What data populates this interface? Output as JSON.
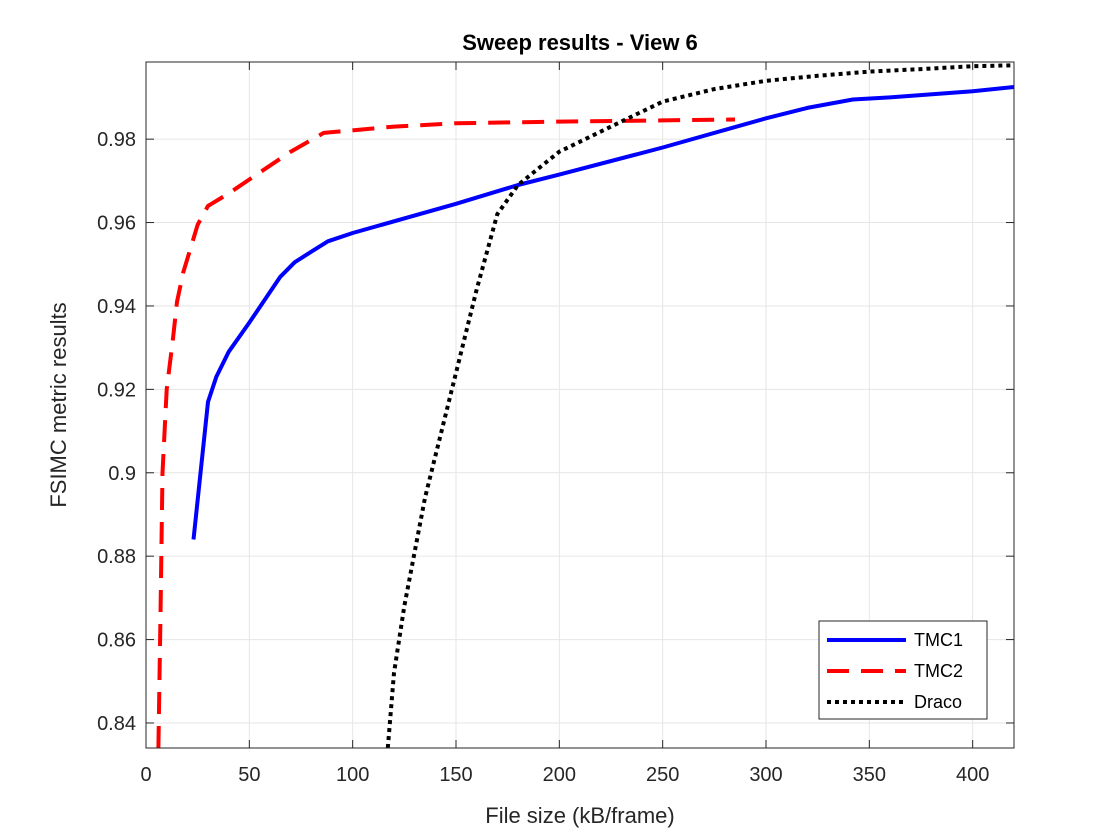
{
  "chart_data": {
    "type": "line",
    "title": "Sweep results - View 6",
    "xlabel": "File size (kB/frame)",
    "ylabel": "FSIMC metric results",
    "xlim": [
      0,
      420
    ],
    "ylim": [
      0.834,
      0.9985
    ],
    "xticks": [
      0,
      50,
      100,
      150,
      200,
      250,
      300,
      350,
      400
    ],
    "yticks": [
      0.84,
      0.86,
      0.88,
      0.9,
      0.92,
      0.94,
      0.96,
      0.98
    ],
    "ytick_labels": [
      "0.84",
      "0.86",
      "0.88",
      "0.9",
      "0.92",
      "0.94",
      "0.96",
      "0.98"
    ],
    "grid": true,
    "legend_position": "bottom-right",
    "series": [
      {
        "name": "TMC1",
        "color": "#0000ff",
        "style": "solid",
        "points": [
          [
            23,
            0.884
          ],
          [
            30,
            0.917
          ],
          [
            34,
            0.923
          ],
          [
            40,
            0.929
          ],
          [
            50,
            0.936
          ],
          [
            65,
            0.947
          ],
          [
            72,
            0.9505
          ],
          [
            80,
            0.953
          ],
          [
            88,
            0.9555
          ],
          [
            100,
            0.9575
          ],
          [
            150,
            0.9645
          ],
          [
            180,
            0.969
          ],
          [
            200,
            0.9715
          ],
          [
            250,
            0.978
          ],
          [
            300,
            0.985
          ],
          [
            320,
            0.9875
          ],
          [
            342,
            0.9895
          ],
          [
            360,
            0.99
          ],
          [
            400,
            0.9915
          ],
          [
            420,
            0.9925
          ]
        ]
      },
      {
        "name": "TMC2",
        "color": "#ff0000",
        "style": "dashed",
        "points": [
          [
            6,
            0.834
          ],
          [
            7,
            0.866
          ],
          [
            8,
            0.9
          ],
          [
            10,
            0.92
          ],
          [
            13,
            0.932
          ],
          [
            15,
            0.941
          ],
          [
            18,
            0.948
          ],
          [
            25,
            0.9595
          ],
          [
            30,
            0.964
          ],
          [
            40,
            0.967
          ],
          [
            55,
            0.972
          ],
          [
            70,
            0.977
          ],
          [
            86,
            0.9815
          ],
          [
            120,
            0.983
          ],
          [
            150,
            0.9838
          ],
          [
            200,
            0.9842
          ],
          [
            250,
            0.9845
          ],
          [
            285,
            0.9847
          ]
        ]
      },
      {
        "name": "Draco",
        "color": "#000000",
        "style": "dotted",
        "points": [
          [
            117,
            0.834
          ],
          [
            120,
            0.852
          ],
          [
            125,
            0.868
          ],
          [
            135,
            0.894
          ],
          [
            148,
            0.92
          ],
          [
            160,
            0.944
          ],
          [
            170,
            0.962
          ],
          [
            180,
            0.969
          ],
          [
            200,
            0.977
          ],
          [
            225,
            0.983
          ],
          [
            250,
            0.989
          ],
          [
            275,
            0.992
          ],
          [
            300,
            0.994
          ],
          [
            325,
            0.9952
          ],
          [
            350,
            0.9962
          ],
          [
            375,
            0.9968
          ],
          [
            400,
            0.9975
          ],
          [
            420,
            0.9977
          ]
        ]
      }
    ]
  }
}
